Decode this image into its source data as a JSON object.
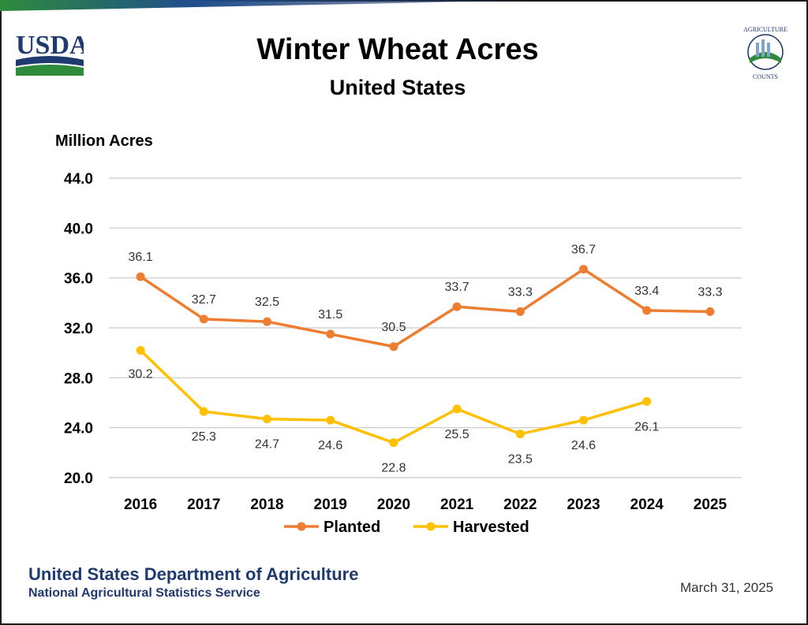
{
  "header": {
    "usda_logo_text": "USDA",
    "ag_logo_text_top": "AGRICULTURE",
    "ag_logo_text_bottom": "COUNTS"
  },
  "chart_data": {
    "type": "line",
    "title": "Winter Wheat Acres",
    "subtitle": "United States",
    "ylabel": "Million Acres",
    "xlabel": "",
    "ylim": [
      20.0,
      44.0
    ],
    "yticks": [
      "20.0",
      "24.0",
      "28.0",
      "32.0",
      "36.0",
      "40.0",
      "44.0"
    ],
    "categories": [
      "2016",
      "2017",
      "2018",
      "2019",
      "2020",
      "2021",
      "2022",
      "2023",
      "2024",
      "2025"
    ],
    "grid": true,
    "legend": "bottom",
    "series": [
      {
        "name": "Planted",
        "color": "#ED7D31",
        "values": [
          36.1,
          32.7,
          32.5,
          31.5,
          30.5,
          33.7,
          33.3,
          36.7,
          33.4,
          33.3
        ],
        "labels": [
          "36.1",
          "32.7",
          "32.5",
          "31.5",
          "30.5",
          "33.7",
          "33.3",
          "36.7",
          "33.4",
          "33.3"
        ]
      },
      {
        "name": "Harvested",
        "color": "#FFC000",
        "values": [
          30.2,
          25.3,
          24.7,
          24.6,
          22.8,
          25.5,
          23.5,
          24.6,
          26.1,
          null
        ],
        "labels": [
          "30.2",
          "25.3",
          "24.7",
          "24.6",
          "22.8",
          "25.5",
          "23.5",
          "24.6",
          "26.1",
          ""
        ]
      }
    ]
  },
  "footer": {
    "org": "United States Department of Agriculture",
    "sub": "National Agricultural Statistics Service",
    "date": "March 31, 2025"
  }
}
